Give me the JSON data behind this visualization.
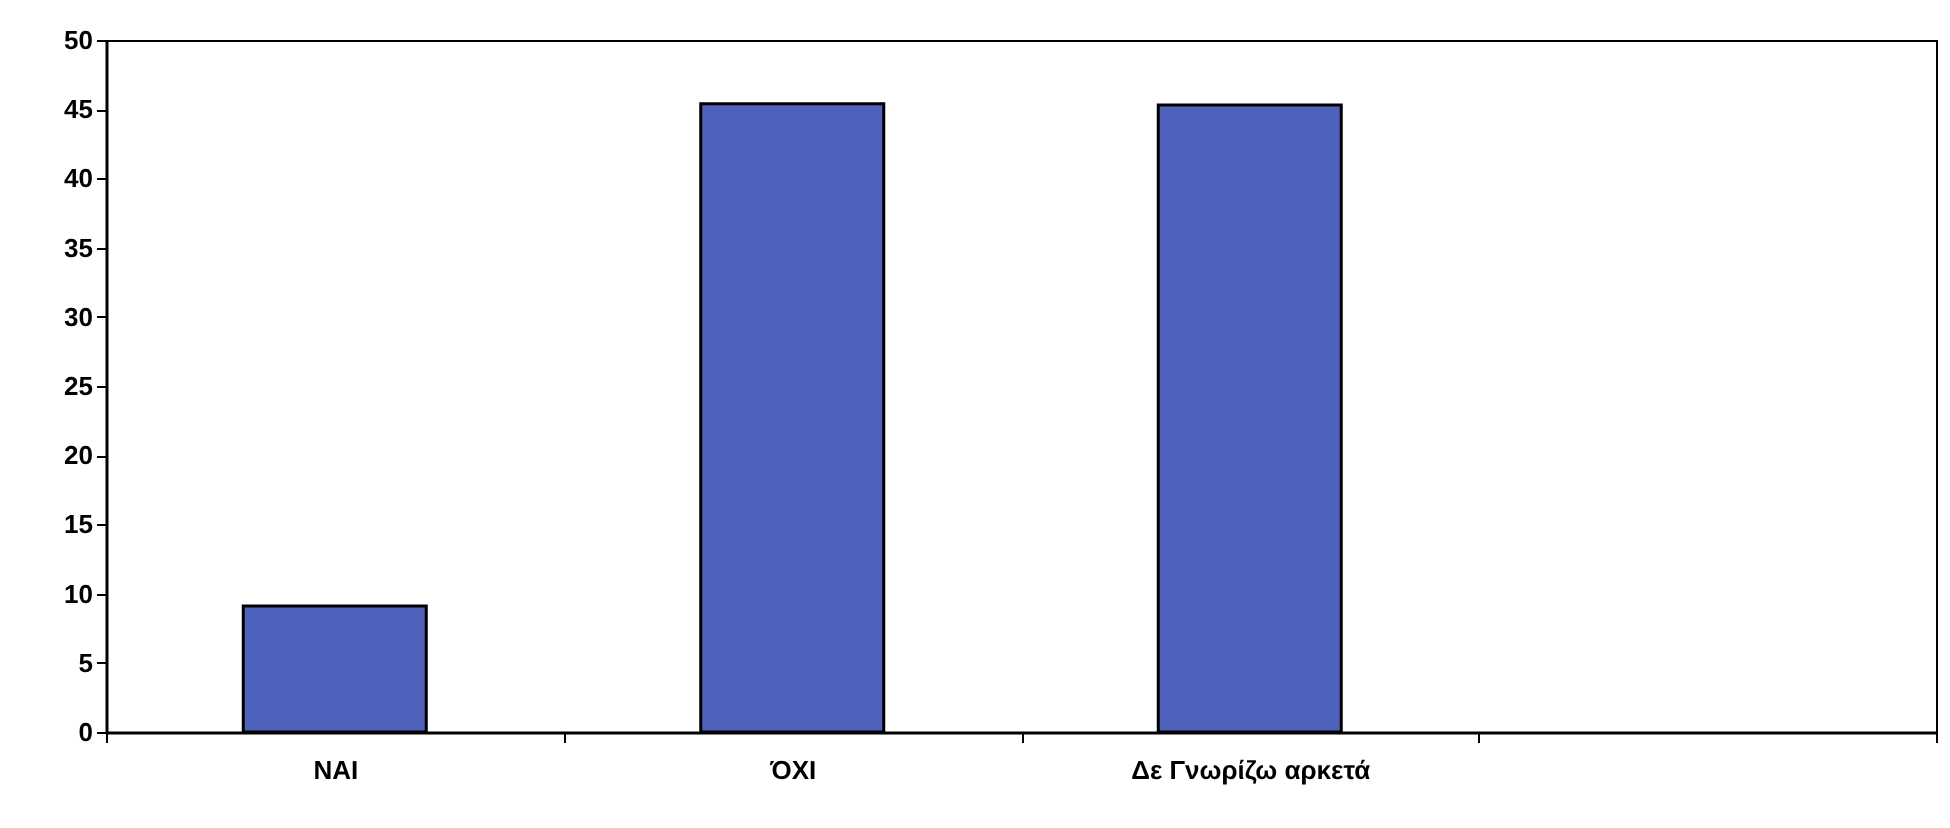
{
  "chart_data": {
    "type": "bar",
    "categories": [
      "ΝΑΙ",
      "ΌΧΙ",
      "Δε Γνωρίζω αρκετά",
      null
    ],
    "values": [
      9.1,
      45.4,
      45.3,
      null
    ],
    "color": "#4f62bb",
    "ylim": [
      0,
      50
    ],
    "yticks": [
      0,
      5,
      10,
      15,
      20,
      25,
      30,
      35,
      40,
      45,
      50
    ],
    "grid": false
  }
}
